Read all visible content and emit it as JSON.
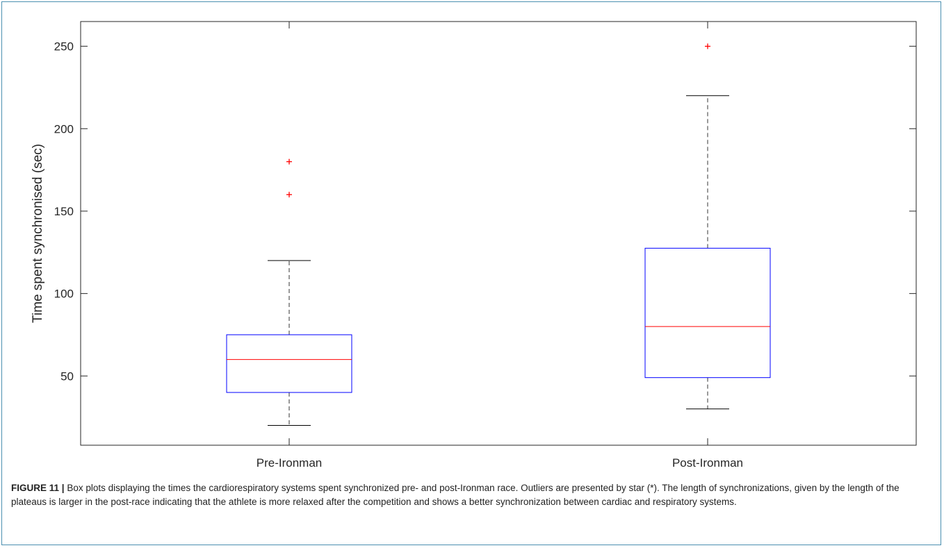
{
  "chart_data": {
    "type": "box",
    "categories": [
      "Pre-Ironman",
      "Post-Ironman"
    ],
    "ylabel": "Time spent synchronised (sec)",
    "xlabel": "",
    "ylim": [
      8,
      265
    ],
    "yticks": [
      50,
      100,
      150,
      200,
      250
    ],
    "grid": false,
    "boxes": [
      {
        "category": "Pre-Ironman",
        "whisker_low": 20,
        "q1": 40,
        "median": 60,
        "q3": 75,
        "whisker_high": 120,
        "outliers": [
          160,
          180
        ]
      },
      {
        "category": "Post-Ironman",
        "whisker_low": 30,
        "q1": 49,
        "median": 80,
        "q3": 127.5,
        "whisker_high": 220,
        "outliers": [
          250
        ]
      }
    ],
    "colors": {
      "box": "#0000ff",
      "median": "#ff0000",
      "whisker": "#000000",
      "outlier": "#ff0000",
      "axes": "#262626"
    }
  },
  "caption": {
    "label": "FIGURE 11 |",
    "text": " Box plots displaying the times the cardiorespiratory systems spent synchronized pre- and post-Ironman race. Outliers are presented by star (*). The length of synchronizations, given by the length of the plateaus is larger in the post-race indicating that the athlete is more relaxed after the competition and shows a better synchronization between cardiac and respiratory systems."
  }
}
